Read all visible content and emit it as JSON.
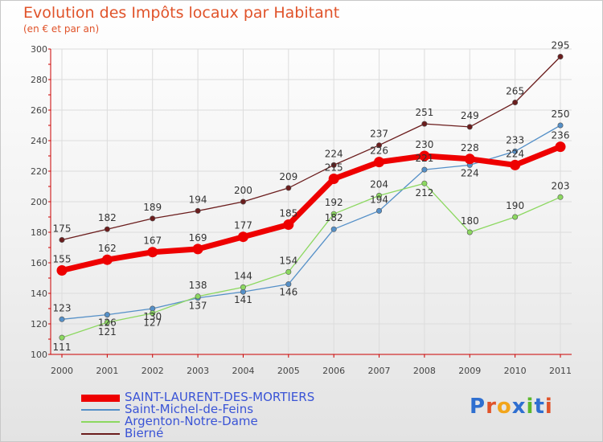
{
  "header": {
    "title": "Evolution des Impôts locaux par Habitant",
    "subtitle": "(en € et par an)"
  },
  "logo": {
    "text": "Proxiti",
    "colors": [
      "#2f6fd0",
      "#e0532a",
      "#f2a51b",
      "#2f6fd0",
      "#5cb82c",
      "#2f6fd0",
      "#e0532a"
    ]
  },
  "chart_data": {
    "type": "line",
    "x": [
      2000,
      2001,
      2002,
      2003,
      2004,
      2005,
      2006,
      2007,
      2008,
      2009,
      2010,
      2011
    ],
    "ylim": [
      100,
      300
    ],
    "yticks": [
      100,
      120,
      140,
      160,
      180,
      200,
      220,
      240,
      260,
      280,
      300
    ],
    "grid": true,
    "legend_position": "bottom-left",
    "series": [
      {
        "name": "SAINT-LAURENT-DES-MORTIERS",
        "color": "#ee0000",
        "values": [
          155,
          162,
          167,
          169,
          177,
          185,
          215,
          226,
          230,
          228,
          224,
          236
        ]
      },
      {
        "name": "Saint-Michel-de-Feins",
        "color": "#5590c8",
        "values": [
          123,
          126,
          130,
          137,
          141,
          146,
          182,
          194,
          221,
          224,
          233,
          250
        ]
      },
      {
        "name": "Argenton-Notre-Dame",
        "color": "#8cd860",
        "values": [
          111,
          121,
          127,
          138,
          144,
          154,
          192,
          204,
          212,
          180,
          190,
          203
        ]
      },
      {
        "name": "Bierné",
        "color": "#6b1d1d",
        "values": [
          175,
          182,
          189,
          194,
          200,
          209,
          224,
          237,
          251,
          249,
          265,
          295
        ]
      }
    ]
  }
}
